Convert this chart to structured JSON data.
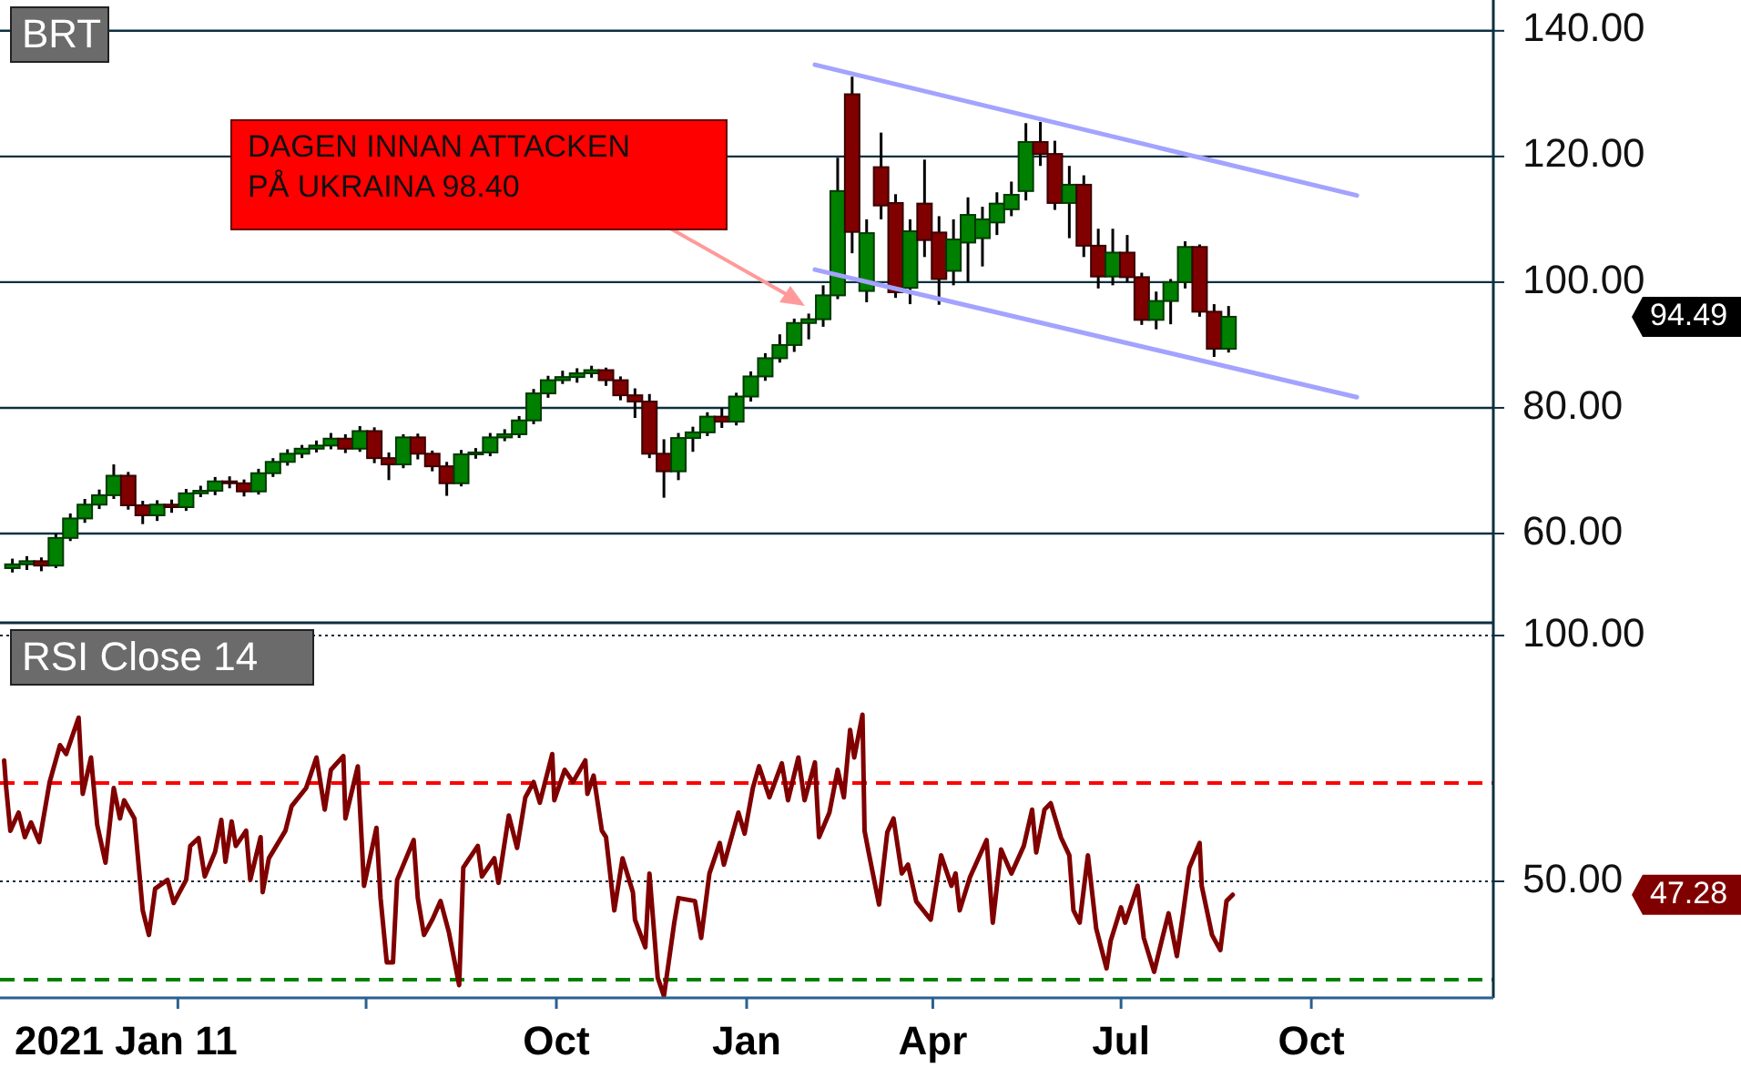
{
  "chart_data": [
    {
      "type": "candlestick",
      "title": "BRT",
      "xlim": [
        "2021-01-05",
        "2022-12-28"
      ],
      "ylim": [
        45.8,
        144.9
      ],
      "yticks": [
        {
          "value": 60,
          "label": "60.00"
        },
        {
          "value": 80,
          "label": "80.00"
        },
        {
          "value": 100,
          "label": "100.00"
        },
        {
          "value": 120,
          "label": "120.00"
        },
        {
          "value": 140,
          "label": "140.00"
        }
      ],
      "grid": "y",
      "tick_labels": "y",
      "annotations": [
        "DAGEN INNAN ATTACKEN\nPÅ UKRAINA  98.40",
        "94.49"
      ],
      "series": [
        {
          "x": [
            "2021-01-11",
            "2021-01-18",
            "2021-01-25",
            "2021-02-01",
            "2021-02-08",
            "2021-02-15",
            "2021-02-22",
            "2021-03-01",
            "2021-03-08",
            "2021-03-15",
            "2021-03-22",
            "2021-03-29",
            "2021-04-05",
            "2021-04-12",
            "2021-04-19",
            "2021-04-26",
            "2021-05-03",
            "2021-05-10",
            "2021-05-17",
            "2021-05-24",
            "2021-05-31",
            "2021-06-07",
            "2021-06-14",
            "2021-06-21",
            "2021-06-28",
            "2021-07-05",
            "2021-07-12",
            "2021-07-19",
            "2021-07-26",
            "2021-08-02",
            "2021-08-09",
            "2021-08-16",
            "2021-08-23",
            "2021-08-30",
            "2021-09-06",
            "2021-09-13",
            "2021-09-20",
            "2021-09-27",
            "2021-10-04",
            "2021-10-11",
            "2021-10-18",
            "2021-10-25",
            "2021-11-01",
            "2021-11-08",
            "2021-11-15",
            "2021-11-22",
            "2021-11-29",
            "2021-12-06",
            "2021-12-13",
            "2021-12-20",
            "2021-12-27",
            "2022-01-03",
            "2022-01-10",
            "2022-01-17",
            "2022-01-24",
            "2022-01-31",
            "2022-02-07",
            "2022-02-14",
            "2022-02-21",
            "2022-02-28",
            "2022-03-07",
            "2022-03-14",
            "2022-03-21",
            "2022-03-28",
            "2022-04-04",
            "2022-04-11",
            "2022-04-18",
            "2022-04-25",
            "2022-05-02",
            "2022-05-09",
            "2022-05-16",
            "2022-05-23",
            "2022-05-30",
            "2022-06-06",
            "2022-06-13",
            "2022-06-20",
            "2022-06-27",
            "2022-07-04",
            "2022-07-11",
            "2022-07-18",
            "2022-07-25",
            "2022-08-01",
            "2022-08-08",
            "2022-08-15",
            "2022-08-22"
          ],
          "ohlc": [
            [
              54.5,
              56.0,
              53.8,
              55.1
            ],
            [
              55.1,
              56.4,
              54.2,
              55.6
            ],
            [
              55.6,
              56.2,
              54.0,
              54.9
            ],
            [
              54.9,
              60.0,
              54.5,
              59.3
            ],
            [
              59.3,
              63.2,
              58.8,
              62.4
            ],
            [
              62.4,
              65.5,
              61.7,
              64.6
            ],
            [
              64.6,
              67.0,
              63.9,
              66.1
            ],
            [
              66.1,
              71.0,
              65.5,
              69.2
            ],
            [
              69.2,
              69.8,
              63.8,
              64.5
            ],
            [
              64.5,
              65.2,
              61.5,
              62.9
            ],
            [
              62.9,
              65.3,
              62.0,
              64.6
            ],
            [
              64.6,
              65.4,
              63.3,
              64.2
            ],
            [
              64.2,
              67.1,
              63.6,
              66.4
            ],
            [
              66.4,
              67.6,
              65.8,
              66.8
            ],
            [
              66.8,
              69.0,
              66.1,
              68.3
            ],
            [
              68.3,
              69.1,
              67.2,
              68.0
            ],
            [
              68.0,
              68.6,
              65.9,
              66.7
            ],
            [
              66.7,
              70.3,
              66.2,
              69.6
            ],
            [
              69.6,
              72.0,
              69.0,
              71.4
            ],
            [
              71.4,
              73.4,
              70.8,
              72.7
            ],
            [
              72.7,
              74.1,
              72.0,
              73.5
            ],
            [
              73.5,
              74.8,
              72.9,
              74.0
            ],
            [
              74.0,
              76.0,
              73.4,
              75.1
            ],
            [
              75.1,
              75.8,
              72.8,
              73.5
            ],
            [
              73.5,
              77.1,
              73.0,
              76.3
            ],
            [
              76.3,
              76.9,
              71.2,
              72.0
            ],
            [
              72.0,
              72.9,
              68.5,
              71.0
            ],
            [
              71.0,
              75.8,
              70.4,
              75.3
            ],
            [
              75.3,
              75.9,
              71.8,
              72.7
            ],
            [
              72.7,
              73.2,
              69.9,
              70.7
            ],
            [
              70.7,
              71.4,
              66.0,
              68.0
            ],
            [
              68.0,
              73.3,
              67.5,
              72.6
            ],
            [
              72.6,
              73.6,
              71.9,
              72.9
            ],
            [
              72.9,
              76.0,
              72.3,
              75.3
            ],
            [
              75.3,
              76.6,
              74.7,
              75.8
            ],
            [
              75.8,
              78.7,
              75.2,
              78.0
            ],
            [
              78.0,
              83.0,
              77.4,
              82.3
            ],
            [
              82.3,
              85.1,
              81.6,
              84.4
            ],
            [
              84.4,
              85.9,
              83.8,
              84.9
            ],
            [
              84.9,
              86.3,
              84.0,
              85.5
            ],
            [
              85.5,
              86.7,
              84.8,
              86.0
            ],
            [
              86.0,
              86.4,
              83.5,
              84.4
            ],
            [
              84.4,
              85.0,
              81.2,
              82.0
            ],
            [
              82.0,
              83.1,
              78.4,
              81.0
            ],
            [
              81.0,
              82.2,
              72.0,
              72.7
            ],
            [
              72.7,
              75.0,
              65.7,
              69.9
            ],
            [
              69.9,
              76.0,
              68.5,
              75.2
            ],
            [
              75.2,
              77.0,
              73.0,
              76.1
            ],
            [
              76.1,
              79.3,
              75.5,
              78.6
            ],
            [
              78.6,
              80.0,
              76.8,
              77.8
            ],
            [
              77.8,
              82.4,
              77.2,
              81.8
            ],
            [
              81.8,
              85.8,
              81.0,
              85.0
            ],
            [
              85.0,
              88.7,
              84.3,
              87.9
            ],
            [
              87.9,
              91.7,
              87.2,
              90.0
            ],
            [
              90.0,
              94.2,
              88.9,
              93.5
            ],
            [
              93.5,
              95.0,
              90.9,
              94.1
            ],
            [
              94.1,
              99.5,
              92.9,
              97.9
            ],
            [
              97.9,
              119.8,
              97.3,
              114.5
            ],
            [
              129.9,
              132.7,
              104.6,
              108.0
            ],
            [
              98.6,
              110.0,
              96.8,
              107.8
            ],
            [
              118.3,
              123.8,
              110.0,
              112.2
            ],
            [
              112.6,
              114.0,
              97.5,
              98.4
            ],
            [
              99.1,
              110.0,
              96.5,
              108.1
            ],
            [
              112.5,
              119.5,
              104.0,
              106.7
            ],
            [
              107.9,
              110.5,
              96.4,
              100.5
            ],
            [
              101.8,
              110.0,
              99.5,
              106.8
            ],
            [
              106.3,
              113.5,
              100.0,
              110.7
            ],
            [
              107.0,
              112.0,
              102.5,
              110.0
            ],
            [
              109.5,
              114.3,
              107.5,
              112.5
            ],
            [
              111.6,
              116.0,
              110.5,
              113.9
            ],
            [
              114.5,
              125.3,
              113.0,
              122.3
            ],
            [
              122.3,
              125.5,
              118.5,
              120.4
            ],
            [
              120.4,
              122.5,
              111.5,
              112.6
            ],
            [
              112.6,
              118.5,
              107.0,
              115.5
            ],
            [
              115.5,
              117.0,
              104.0,
              105.8
            ],
            [
              105.8,
              108.5,
              99.0,
              100.9
            ],
            [
              100.9,
              108.5,
              99.5,
              104.7
            ],
            [
              104.7,
              107.5,
              100.0,
              100.8
            ],
            [
              100.8,
              101.5,
              93.2,
              94.0
            ],
            [
              94.0,
              98.5,
              92.5,
              97.0
            ],
            [
              97.0,
              100.5,
              93.3,
              100.0
            ],
            [
              100.0,
              106.5,
              99.0,
              105.6
            ],
            [
              105.6,
              106.0,
              94.5,
              95.3
            ],
            [
              95.3,
              96.5,
              88.1,
              89.4
            ],
            [
              89.4,
              96.2,
              88.8,
              94.49
            ]
          ]
        },
        {
          "type": "line",
          "color": "#a3a3ff",
          "x": [
            "2022-02-03",
            "2022-10-23"
          ],
          "values": [
            134.6,
            113.8
          ]
        },
        {
          "type": "line",
          "color": "#a3a3ff",
          "x": [
            "2022-02-03",
            "2022-10-23"
          ],
          "values": [
            102,
            81.7
          ]
        }
      ]
    },
    {
      "type": "line",
      "title": "RSI Close 14",
      "xlim": [
        "2021-01-05",
        "2022-12-28"
      ],
      "ylim": [
        26.3,
        102.6
      ],
      "yticks": [
        {
          "value": 50,
          "label": "50.00"
        },
        {
          "value": 100,
          "label": "100.00"
        }
      ],
      "xticks": [
        {
          "value": "2021-04-01",
          "label": null
        },
        {
          "value": "2021-07-01",
          "label": null
        },
        {
          "value": "2021-10-01",
          "label": "Oct"
        },
        {
          "value": "2022-01-01",
          "label": "Jan"
        },
        {
          "value": "2022-04-01",
          "label": "Apr"
        },
        {
          "value": "2022-07-01",
          "label": "Jul"
        },
        {
          "value": "2022-10-01",
          "label": "Oct"
        }
      ],
      "grid": "y",
      "ref_lines": [
        {
          "axis": "y",
          "value": 70,
          "color": "#ff0000",
          "line_style": "dashed"
        },
        {
          "axis": "y",
          "value": 30,
          "color": "#008000",
          "line_style": "dashed"
        }
      ],
      "annotations": [
        "2021 Jan 11",
        "47.28"
      ],
      "series": [
        {
          "color": "#800000",
          "x": [
            "2021-01-07",
            "2021-01-08",
            "2021-01-10",
            "2021-01-14",
            "2021-01-17",
            "2021-01-20",
            "2021-01-24",
            "2021-01-29",
            "2021-02-03",
            "2021-02-06",
            "2021-02-12",
            "2021-02-14",
            "2021-02-18",
            "2021-02-21",
            "2021-02-25",
            "2021-03-01",
            "2021-03-04",
            "2021-03-06",
            "2021-03-11",
            "2021-03-15",
            "2021-03-18",
            "2021-03-21",
            "2021-03-27",
            "2021-03-30",
            "2021-04-05",
            "2021-04-07",
            "2021-04-11",
            "2021-04-14",
            "2021-04-19",
            "2021-04-22",
            "2021-04-24",
            "2021-04-27",
            "2021-04-29",
            "2021-05-04",
            "2021-05-06",
            "2021-05-11",
            "2021-05-12",
            "2021-05-15",
            "2021-05-23",
            "2021-05-26",
            "2021-06-02",
            "2021-06-07",
            "2021-06-11",
            "2021-06-14",
            "2021-06-20",
            "2021-06-21",
            "2021-06-27",
            "2021-06-30",
            "2021-07-06",
            "2021-07-08",
            "2021-07-11",
            "2021-07-14",
            "2021-07-16",
            "2021-07-24",
            "2021-07-26",
            "2021-07-29",
            "2021-08-02",
            "2021-08-06",
            "2021-08-10",
            "2021-08-15",
            "2021-08-17",
            "2021-08-24",
            "2021-08-26",
            "2021-09-01",
            "2021-09-03",
            "2021-09-08",
            "2021-09-12",
            "2021-09-16",
            "2021-09-20",
            "2021-09-23",
            "2021-09-29",
            "2021-09-30",
            "2021-10-05",
            "2021-10-09",
            "2021-10-15",
            "2021-10-16",
            "2021-10-19",
            "2021-10-23",
            "2021-10-25",
            "2021-10-29",
            "2021-11-02",
            "2021-11-07",
            "2021-11-08",
            "2021-11-13",
            "2021-11-15",
            "2021-11-19",
            "2021-11-22",
            "2021-11-27",
            "2021-11-29",
            "2021-12-07",
            "2021-12-10",
            "2021-12-14",
            "2021-12-19",
            "2021-12-21",
            "2021-12-28",
            "2021-12-31",
            "2022-01-04",
            "2022-01-07",
            "2022-01-12",
            "2022-01-18",
            "2022-01-21",
            "2022-01-26",
            "2022-01-29",
            "2022-02-03",
            "2022-02-05",
            "2022-02-10",
            "2022-02-14",
            "2022-02-17",
            "2022-02-20",
            "2022-02-22",
            "2022-02-26",
            "2022-02-27",
            "2022-03-01",
            "2022-03-06",
            "2022-03-10",
            "2022-03-13",
            "2022-03-17",
            "2022-03-20",
            "2022-03-24",
            "2022-03-31",
            "2022-04-05",
            "2022-04-10",
            "2022-04-12",
            "2022-04-14",
            "2022-04-19",
            "2022-04-27",
            "2022-04-30",
            "2022-05-04",
            "2022-05-09",
            "2022-05-15",
            "2022-05-19",
            "2022-05-21",
            "2022-05-25",
            "2022-05-28",
            "2022-06-02",
            "2022-06-06",
            "2022-06-08",
            "2022-06-11",
            "2022-06-15",
            "2022-06-19",
            "2022-06-24",
            "2022-06-26",
            "2022-07-01",
            "2022-07-03",
            "2022-07-09",
            "2022-07-12",
            "2022-07-17",
            "2022-07-21",
            "2022-07-24",
            "2022-07-28",
            "2022-07-31",
            "2022-08-03",
            "2022-08-08",
            "2022-08-09",
            "2022-08-14",
            "2022-08-18",
            "2022-08-21",
            "2022-08-24"
          ],
          "values": [
            74.6,
            69,
            60.3,
            64,
            59,
            62,
            58,
            70.2,
            77.7,
            75.9,
            83.3,
            67.8,
            75.2,
            61.5,
            53.8,
            69,
            62.8,
            66.5,
            62.8,
            44.1,
            39.1,
            48.5,
            50.3,
            45.6,
            50.3,
            57.2,
            58.8,
            51,
            56,
            62.5,
            54,
            62.2,
            57.2,
            60.3,
            50.3,
            59,
            47.8,
            54.7,
            60.3,
            65.3,
            69,
            75.2,
            64.6,
            72.7,
            75.5,
            62.8,
            73.4,
            49.1,
            60.9,
            46.6,
            33.5,
            33.5,
            50.3,
            58.4,
            46.6,
            39.1,
            42.2,
            46,
            39.7,
            28.9,
            52.8,
            57.2,
            51,
            54.7,
            49.7,
            63.4,
            56.8,
            67.1,
            70.2,
            66,
            75.9,
            66.5,
            72.7,
            70.2,
            74.6,
            67.8,
            71.5,
            60.3,
            59,
            44.1,
            54.7,
            47.8,
            42.2,
            36.6,
            51.6,
            30.4,
            26.7,
            41.6,
            46.6,
            46,
            38.5,
            51.6,
            57.8,
            53.4,
            64,
            59.7,
            69,
            73.4,
            67.1,
            74,
            66.5,
            75.2,
            66.5,
            74.2,
            59,
            64,
            72.7,
            67.1,
            80.8,
            75.2,
            83.9,
            60.3,
            55.9,
            45.3,
            60,
            62.8,
            51.6,
            53.4,
            45.9,
            42.2,
            55.3,
            49.1,
            51.6,
            44.1,
            50.9,
            58.4,
            41.6,
            56.5,
            51.6,
            57.2,
            64.6,
            55.9,
            64.6,
            65.9,
            58.9,
            55.3,
            44.1,
            41.6,
            55.3,
            40.4,
            32.3,
            37.9,
            44.7,
            41.6,
            49.1,
            38.5,
            31.6,
            38.5,
            43.5,
            34.8,
            43.5,
            52.8,
            57.8,
            49.1,
            39.1,
            36,
            46,
            47.28
          ]
        }
      ]
    }
  ]
}
